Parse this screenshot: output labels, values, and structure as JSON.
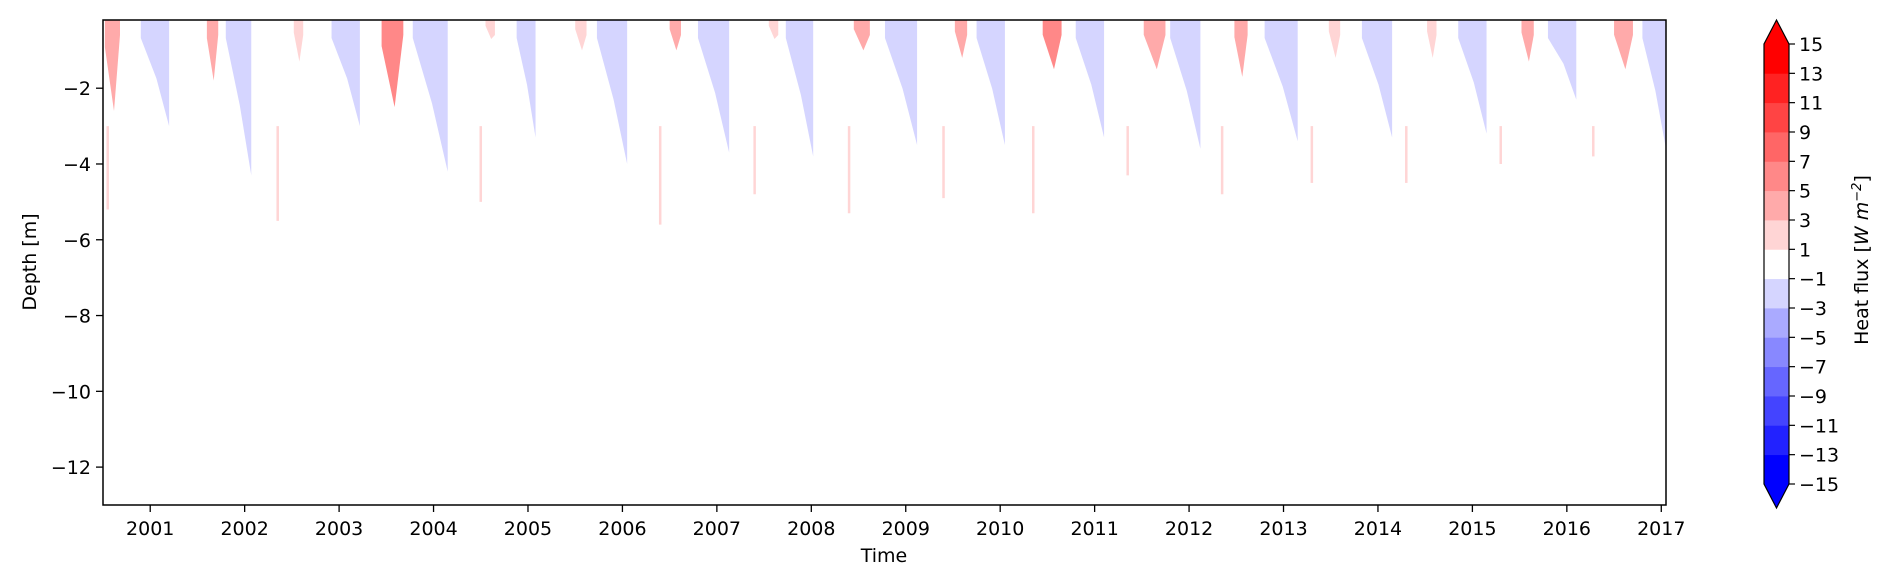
{
  "chart_data": {
    "type": "heatmap",
    "title": "",
    "xlabel": "Time",
    "ylabel": "Depth [m]",
    "xlim": [
      2000.5,
      2017.05
    ],
    "ylim": [
      -13,
      -0.2
    ],
    "x_ticks": [
      "2001",
      "2002",
      "2003",
      "2004",
      "2005",
      "2006",
      "2007",
      "2008",
      "2009",
      "2010",
      "2011",
      "2012",
      "2013",
      "2014",
      "2015",
      "2016",
      "2017"
    ],
    "y_ticks": [
      -2,
      -4,
      -6,
      -8,
      -10,
      -12
    ],
    "grid": false,
    "colorbar": {
      "label_main": "Heat flux [",
      "label_unit": "W m",
      "label_exp": "−2",
      "label_close": "]",
      "levels": [
        -15,
        -13,
        -11,
        -9,
        -7,
        -5,
        -3,
        -1,
        1,
        3,
        5,
        7,
        9,
        11,
        13,
        15
      ],
      "tick_labels": [
        "15",
        "13",
        "11",
        "9",
        "7",
        "5",
        "3",
        "1",
        "−1",
        "−3",
        "−5",
        "−7",
        "−9",
        "−11",
        "−13",
        "−15"
      ],
      "colors": [
        "#0000ff",
        "#2222ff",
        "#4444ff",
        "#6666ff",
        "#8888ff",
        "#aaaaff",
        "#d5d5ff",
        "#ffffff",
        "#ffd5d5",
        "#ffaaaa",
        "#ff8888",
        "#ff6666",
        "#ff4444",
        "#ff2222",
        "#ff0000"
      ],
      "extend": "both"
    },
    "cooling_events": [
      {
        "start": 2000.9,
        "end": 2001.2,
        "depth": -3.0
      },
      {
        "start": 2001.8,
        "end": 2002.07,
        "depth": -4.3
      },
      {
        "start": 2002.92,
        "end": 2003.22,
        "depth": -3.0
      },
      {
        "start": 2003.78,
        "end": 2004.15,
        "depth": -4.2
      },
      {
        "start": 2004.88,
        "end": 2005.08,
        "depth": -3.3
      },
      {
        "start": 2005.73,
        "end": 2006.05,
        "depth": -4.0
      },
      {
        "start": 2006.8,
        "end": 2007.13,
        "depth": -3.7
      },
      {
        "start": 2007.73,
        "end": 2008.02,
        "depth": -3.8
      },
      {
        "start": 2008.78,
        "end": 2009.12,
        "depth": -3.5
      },
      {
        "start": 2009.75,
        "end": 2010.05,
        "depth": -3.5
      },
      {
        "start": 2010.8,
        "end": 2011.1,
        "depth": -3.3
      },
      {
        "start": 2011.8,
        "end": 2012.12,
        "depth": -3.6
      },
      {
        "start": 2012.8,
        "end": 2013.15,
        "depth": -3.4
      },
      {
        "start": 2013.83,
        "end": 2014.15,
        "depth": -3.3
      },
      {
        "start": 2014.85,
        "end": 2015.15,
        "depth": -3.2
      },
      {
        "start": 2015.8,
        "end": 2016.1,
        "depth": -2.3
      },
      {
        "start": 2016.8,
        "end": 2017.05,
        "depth": -3.6
      }
    ],
    "warming_events": [
      {
        "start": 2000.52,
        "end": 2000.68,
        "depth": -2.6,
        "level": 5
      },
      {
        "start": 2001.6,
        "end": 2001.72,
        "depth": -1.8,
        "level": 5
      },
      {
        "start": 2002.52,
        "end": 2002.62,
        "depth": -1.3,
        "level": 3
      },
      {
        "start": 2003.45,
        "end": 2003.68,
        "depth": -2.5,
        "level": 7
      },
      {
        "start": 2004.55,
        "end": 2004.65,
        "depth": -0.7,
        "level": 3
      },
      {
        "start": 2005.5,
        "end": 2005.62,
        "depth": -1.0,
        "level": 3
      },
      {
        "start": 2006.5,
        "end": 2006.62,
        "depth": -1.0,
        "level": 5
      },
      {
        "start": 2007.55,
        "end": 2007.65,
        "depth": -0.7,
        "level": 3
      },
      {
        "start": 2008.45,
        "end": 2008.62,
        "depth": -1.0,
        "level": 5
      },
      {
        "start": 2009.52,
        "end": 2009.65,
        "depth": -1.2,
        "level": 5
      },
      {
        "start": 2010.45,
        "end": 2010.65,
        "depth": -1.5,
        "level": 7
      },
      {
        "start": 2011.52,
        "end": 2011.75,
        "depth": -1.5,
        "level": 5
      },
      {
        "start": 2012.48,
        "end": 2012.62,
        "depth": -1.7,
        "level": 5
      },
      {
        "start": 2013.48,
        "end": 2013.6,
        "depth": -1.2,
        "level": 3
      },
      {
        "start": 2014.52,
        "end": 2014.62,
        "depth": -1.2,
        "level": 3
      },
      {
        "start": 2015.52,
        "end": 2015.65,
        "depth": -1.3,
        "level": 5
      },
      {
        "start": 2016.5,
        "end": 2016.7,
        "depth": -1.5,
        "level": 5
      }
    ],
    "deep_spikes": [
      {
        "x": 2000.55,
        "y": -5.2
      },
      {
        "x": 2002.35,
        "y": -5.5
      },
      {
        "x": 2004.5,
        "y": -5.0
      },
      {
        "x": 2006.4,
        "y": -5.6
      },
      {
        "x": 2007.4,
        "y": -4.8
      },
      {
        "x": 2008.4,
        "y": -5.3
      },
      {
        "x": 2009.4,
        "y": -4.9
      },
      {
        "x": 2010.35,
        "y": -5.3
      },
      {
        "x": 2011.35,
        "y": -4.3
      },
      {
        "x": 2012.35,
        "y": -4.8
      },
      {
        "x": 2013.3,
        "y": -4.5
      },
      {
        "x": 2014.3,
        "y": -4.5
      },
      {
        "x": 2015.3,
        "y": -4.0
      },
      {
        "x": 2016.28,
        "y": -3.8
      }
    ]
  }
}
